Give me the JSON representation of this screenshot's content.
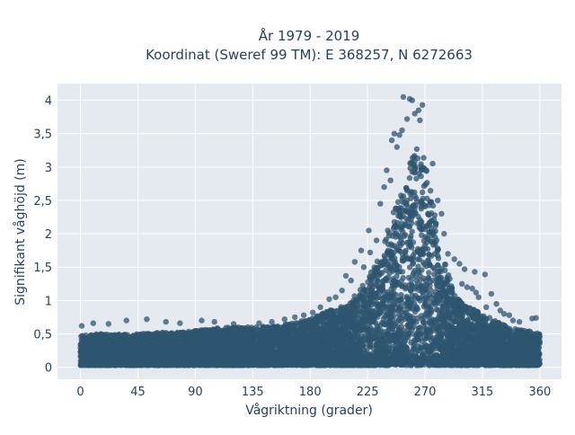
{
  "chart_data": {
    "type": "scatter",
    "title": "År 1979 - 2019",
    "subtitle": "Koordinat (Sweref 99 TM): E 368257, N 6272663",
    "xlabel": "Vågriktning (grader)",
    "ylabel": "Signifikant våghöjd (m)",
    "xlim": [
      -18,
      377
    ],
    "ylim": [
      -0.18,
      4.25
    ],
    "x_ticks": [
      0,
      45,
      90,
      135,
      180,
      225,
      270,
      315,
      360
    ],
    "x_tick_labels": [
      "0",
      "45",
      "90",
      "135",
      "180",
      "225",
      "270",
      "315",
      "360"
    ],
    "y_ticks": [
      0,
      0.5,
      1,
      1.5,
      2,
      2.5,
      3,
      3.5,
      4
    ],
    "y_tick_labels": [
      "0",
      "0,5",
      "1",
      "1,5",
      "2",
      "2,5",
      "3",
      "3,5",
      "4"
    ],
    "grid": true,
    "marker_color": "#2f5570",
    "background_color": "#e5e9f0",
    "envelope": {
      "direction": [
        0,
        15,
        30,
        45,
        60,
        75,
        90,
        105,
        120,
        135,
        150,
        165,
        180,
        195,
        210,
        220,
        230,
        240,
        245,
        250,
        255,
        260,
        265,
        270,
        275,
        280,
        285,
        290,
        295,
        300,
        310,
        320,
        330,
        340,
        350,
        360
      ],
      "lower_height": [
        0.03,
        0.03,
        0.03,
        0.03,
        0.03,
        0.03,
        0.03,
        0.03,
        0.03,
        0.03,
        0.03,
        0.03,
        0.03,
        0.03,
        0.03,
        0.03,
        0.03,
        0.03,
        0.03,
        0.03,
        0.03,
        0.03,
        0.03,
        0.03,
        0.03,
        0.03,
        0.03,
        0.03,
        0.03,
        0.03,
        0.03,
        0.03,
        0.03,
        0.03,
        0.03,
        0.03
      ],
      "upper_height": [
        0.48,
        0.5,
        0.5,
        0.5,
        0.52,
        0.52,
        0.55,
        0.58,
        0.6,
        0.6,
        0.62,
        0.66,
        0.72,
        0.85,
        0.95,
        1.2,
        1.5,
        2.0,
        2.3,
        2.6,
        2.9,
        3.2,
        3.3,
        3.1,
        2.6,
        2.1,
        1.6,
        1.3,
        1.05,
        0.95,
        0.85,
        0.75,
        0.65,
        0.58,
        0.55,
        0.5
      ]
    },
    "outlier_points": [
      {
        "x": 253,
        "y": 4.05
      },
      {
        "x": 258,
        "y": 4.02
      },
      {
        "x": 260,
        "y": 4.0
      },
      {
        "x": 268,
        "y": 3.93
      },
      {
        "x": 265,
        "y": 3.85
      },
      {
        "x": 262,
        "y": 3.8
      },
      {
        "x": 256,
        "y": 3.72
      },
      {
        "x": 266,
        "y": 3.7
      },
      {
        "x": 252,
        "y": 3.55
      },
      {
        "x": 246,
        "y": 3.5
      },
      {
        "x": 250,
        "y": 3.48
      },
      {
        "x": 244,
        "y": 3.4
      },
      {
        "x": 248,
        "y": 3.3
      },
      {
        "x": 276,
        "y": 3.05
      },
      {
        "x": 240,
        "y": 2.95
      },
      {
        "x": 243,
        "y": 2.8
      },
      {
        "x": 238,
        "y": 2.7
      },
      {
        "x": 280,
        "y": 2.5
      },
      {
        "x": 235,
        "y": 2.45
      },
      {
        "x": 283,
        "y": 2.3
      },
      {
        "x": 226,
        "y": 2.05
      },
      {
        "x": 285,
        "y": 2.0
      },
      {
        "x": 232,
        "y": 1.9
      },
      {
        "x": 220,
        "y": 1.75
      },
      {
        "x": 227,
        "y": 1.72
      },
      {
        "x": 288,
        "y": 1.7
      },
      {
        "x": 293,
        "y": 1.62
      },
      {
        "x": 215,
        "y": 1.58
      },
      {
        "x": 297,
        "y": 1.55
      },
      {
        "x": 222,
        "y": 1.5
      },
      {
        "x": 301,
        "y": 1.47
      },
      {
        "x": 309,
        "y": 1.43
      },
      {
        "x": 317,
        "y": 1.39
      },
      {
        "x": 208,
        "y": 1.37
      },
      {
        "x": 212,
        "y": 1.3
      },
      {
        "x": 299,
        "y": 1.25
      },
      {
        "x": 303,
        "y": 1.2
      },
      {
        "x": 307,
        "y": 1.18
      },
      {
        "x": 205,
        "y": 1.15
      },
      {
        "x": 310,
        "y": 1.12
      },
      {
        "x": 322,
        "y": 1.1
      },
      {
        "x": 312,
        "y": 1.05
      },
      {
        "x": 200,
        "y": 1.05
      },
      {
        "x": 195,
        "y": 1.02
      },
      {
        "x": 326,
        "y": 0.95
      },
      {
        "x": 318,
        "y": 0.9
      },
      {
        "x": 329,
        "y": 0.85
      },
      {
        "x": 188,
        "y": 0.9
      },
      {
        "x": 332,
        "y": 0.8
      },
      {
        "x": 336,
        "y": 0.78
      },
      {
        "x": 339,
        "y": 0.7
      },
      {
        "x": 354,
        "y": 0.73
      },
      {
        "x": 357,
        "y": 0.74
      },
      {
        "x": 344,
        "y": 0.68
      },
      {
        "x": 182,
        "y": 0.82
      },
      {
        "x": 175,
        "y": 0.78
      },
      {
        "x": 168,
        "y": 0.75
      },
      {
        "x": 160,
        "y": 0.72
      },
      {
        "x": 150,
        "y": 0.68
      },
      {
        "x": 140,
        "y": 0.66
      },
      {
        "x": 120,
        "y": 0.65
      },
      {
        "x": 105,
        "y": 0.68
      },
      {
        "x": 95,
        "y": 0.7
      },
      {
        "x": 78,
        "y": 0.66
      },
      {
        "x": 67,
        "y": 0.68
      },
      {
        "x": 52,
        "y": 0.72
      },
      {
        "x": 36,
        "y": 0.7
      },
      {
        "x": 22,
        "y": 0.65
      },
      {
        "x": 10,
        "y": 0.66
      },
      {
        "x": 1,
        "y": 0.62
      }
    ]
  }
}
